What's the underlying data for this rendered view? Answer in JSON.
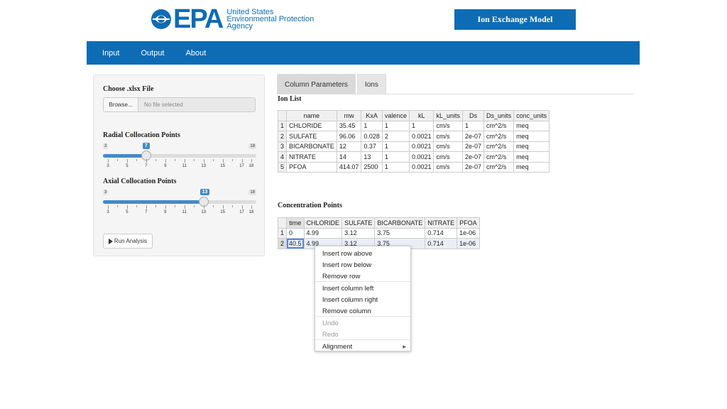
{
  "header": {
    "logo_word": "EPA",
    "agency_line1": "United States",
    "agency_line2": "Environmental Protection",
    "agency_line3": "Agency",
    "model_button": "Ion Exchange Model"
  },
  "nav": {
    "items": [
      "Input",
      "Output",
      "About"
    ]
  },
  "sidebar": {
    "file_label": "Choose .xlsx File",
    "browse_label": "Browse...",
    "file_status": "No file selected",
    "radial": {
      "label": "Radial Collocation Points",
      "min": "3",
      "max": "18",
      "value": "7",
      "value_num": 7,
      "tick_labels": [
        "3",
        "5",
        "7",
        "9",
        "11",
        "13",
        "15",
        "17",
        "18"
      ]
    },
    "axial": {
      "label": "Axial Collocation Points",
      "min": "3",
      "max": "18",
      "value": "13",
      "value_num": 13,
      "tick_labels": [
        "3",
        "5",
        "7",
        "9",
        "11",
        "13",
        "15",
        "17",
        "18"
      ]
    },
    "run_label": "Run Analysis"
  },
  "tabs": [
    "Column Parameters",
    "Ions"
  ],
  "ion_list": {
    "title": "Ion List",
    "headers": [
      "",
      "name",
      "mw",
      "KxA",
      "valence",
      "kL",
      "kL_units",
      "Ds",
      "Ds_units",
      "conc_units"
    ],
    "rows": [
      [
        "1",
        "CHLORIDE",
        "35.45",
        "1",
        "1",
        "1",
        "cm/s",
        "1",
        "cm^2/s",
        "meq"
      ],
      [
        "2",
        "SULFATE",
        "96.06",
        "0.028",
        "2",
        "0.0021",
        "cm/s",
        "2e-07",
        "cm^2/s",
        "meq"
      ],
      [
        "3",
        "BICARBONATE",
        "12",
        "0.37",
        "1",
        "0.0021",
        "cm/s",
        "2e-07",
        "cm^2/s",
        "meq"
      ],
      [
        "4",
        "NITRATE",
        "14",
        "13",
        "1",
        "0.0021",
        "cm/s",
        "2e-07",
        "cm^2/s",
        "meq"
      ],
      [
        "5",
        "PFOA",
        "414.07",
        "2500",
        "1",
        "0.0021",
        "cm/s",
        "2e-07",
        "cm^2/s",
        "meq"
      ]
    ]
  },
  "concentration": {
    "title": "Concentration Points",
    "headers": [
      "",
      "time",
      "CHLORIDE",
      "SULFATE",
      "BICARBONATE",
      "NITRATE",
      "PFOA"
    ],
    "rows": [
      [
        "1",
        "0",
        "4.99",
        "3.12",
        "3.75",
        "0.714",
        "1e-06"
      ],
      [
        "2",
        "40.5",
        "4.99",
        "3.12",
        "3.75",
        "0.714",
        "1e-06"
      ]
    ]
  },
  "context_menu": {
    "items": [
      {
        "label": "Insert row above",
        "disabled": false
      },
      {
        "label": "Insert row below",
        "disabled": false
      },
      {
        "label": "Remove row",
        "disabled": false
      },
      {
        "label": "Insert column left",
        "disabled": false
      },
      {
        "label": "Insert column right",
        "disabled": false
      },
      {
        "label": "Remove column",
        "disabled": false
      },
      {
        "label": "Undo",
        "disabled": true
      },
      {
        "label": "Redo",
        "disabled": true
      },
      {
        "label": "Alignment",
        "disabled": false,
        "submenu": true
      }
    ]
  },
  "colors": {
    "brand_blue": "#0e6cb5",
    "slider_blue": "#428bca"
  }
}
